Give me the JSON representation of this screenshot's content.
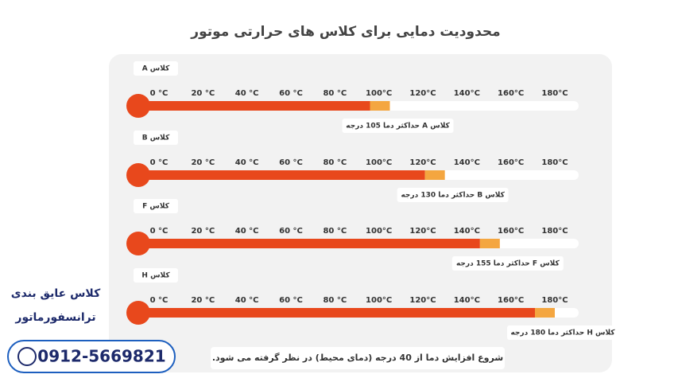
{
  "chart_data": {
    "type": "thermometer-bar",
    "title": "محدودیت دمایی برای کلاس های حرارتی موتور",
    "categories": [
      "کلاس A",
      "کلاس B",
      "کلاس F",
      "کلاس H"
    ],
    "values": [
      105,
      130,
      155,
      180
    ],
    "value_labels": [
      "کلاس A حداکثر دما 105 درجه",
      "کلاس B حداکثر دما 130 درجه",
      "کلاس F حداکثر دما 155 درجه",
      "کلاس H حداکثر دما 180 درجه"
    ],
    "color": "#e8481c",
    "cap_color": "#f4a640",
    "xlim": [
      0,
      180
    ],
    "xticks": [
      {
        "value": 0,
        "label": "0 °C"
      },
      {
        "value": 20,
        "label": "20 °C"
      },
      {
        "value": 40,
        "label": "40 °C"
      },
      {
        "value": 60,
        "label": "60 °C"
      },
      {
        "value": 80,
        "label": "80 °C"
      },
      {
        "value": 100,
        "label": "100°C"
      },
      {
        "value": 120,
        "label": "120°C"
      },
      {
        "value": 140,
        "label": "140°C"
      },
      {
        "value": 160,
        "label": "160°C"
      },
      {
        "value": 180,
        "label": "180°C"
      }
    ],
    "note": "شروع افزایش دما از 40 درجه (دمای محیط) در نظر گرفته می شود.",
    "side_text": [
      "کلاس عایق بندی",
      "ترانسفورماتور"
    ],
    "phone": "0912-5669821"
  }
}
